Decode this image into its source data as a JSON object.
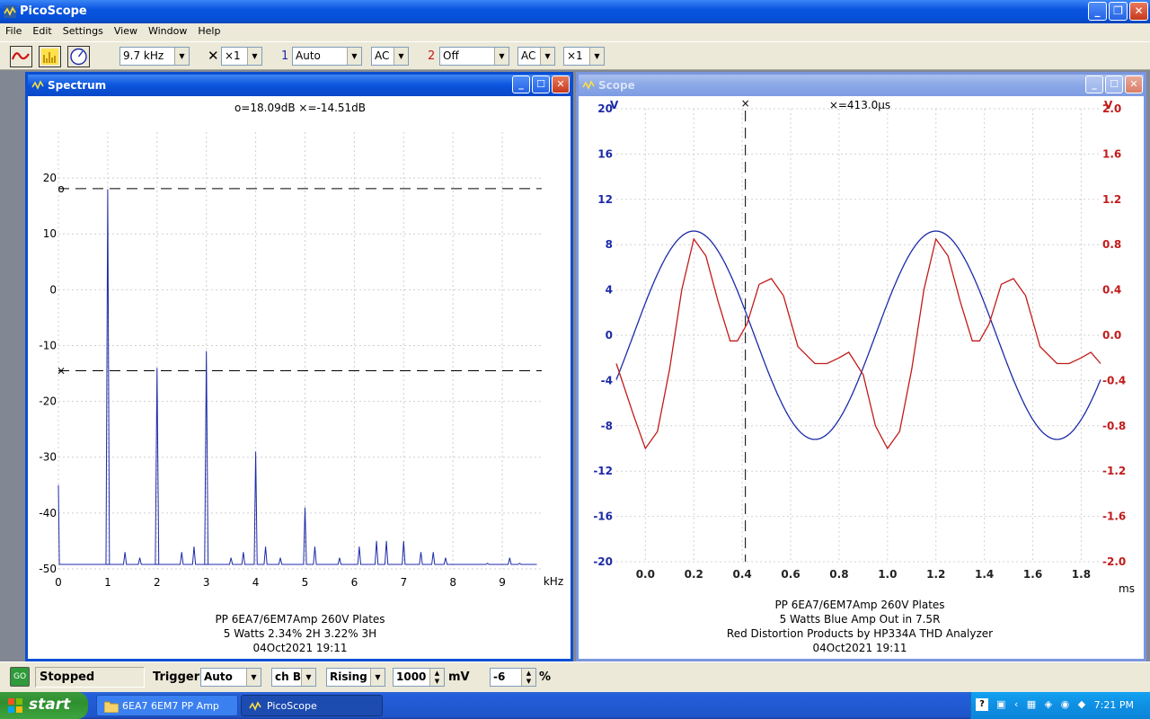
{
  "app": {
    "title": "PicoScope",
    "menu": [
      "File",
      "Edit",
      "Settings",
      "View",
      "Window",
      "Help"
    ]
  },
  "toolbar": {
    "timebase": "9.7 kHz",
    "mult_symbol": "✕",
    "multiplier": "×1",
    "ch1_label": "1",
    "ch1_range": "Auto",
    "ch1_coupling": "AC",
    "ch2_label": "2",
    "ch2_range": "Off",
    "ch2_coupling": "AC",
    "ch2_mult": "×1"
  },
  "spectrum": {
    "title": "Spectrum",
    "readout": "o=18.09dB  ×=-14.51dB",
    "unit": "kHz",
    "caption": [
      "PP 6EA7/6EM7Amp 260V Plates",
      "5 Watts 2.34% 2H 3.22% 3H",
      "04Oct2021  19:11"
    ],
    "marker_o": "o",
    "marker_x": "×"
  },
  "scope": {
    "title": "Scope",
    "readout": "×=413.0µs",
    "left_unit": "V",
    "right_unit": "V",
    "x_unit": "ms",
    "caption": [
      "PP 6EA7/6EM7Amp 260V Plates",
      "5 Watts Blue Amp Out in 7.5R",
      "Red Distortion Products by HP334A THD Analyzer",
      "04Oct2021  19:11"
    ]
  },
  "chart_data": [
    {
      "type": "line",
      "name": "spectrum",
      "xlabel": "kHz",
      "xlim": [
        0,
        9.8
      ],
      "ylim": [
        -50,
        25
      ],
      "x_ticks": [
        "0",
        "1",
        "2",
        "3",
        "4",
        "5",
        "6",
        "7",
        "8",
        "9"
      ],
      "y_ticks": [
        "20",
        "10",
        "0",
        "-10",
        "-20",
        "-30",
        "-40",
        "-50"
      ],
      "cursors_db": [
        18.09,
        -14.51
      ],
      "peaks": [
        {
          "x": 0.0,
          "y": -35
        },
        {
          "x": 1.0,
          "y": 18
        },
        {
          "x": 1.35,
          "y": -47
        },
        {
          "x": 1.65,
          "y": -48
        },
        {
          "x": 2.0,
          "y": -14
        },
        {
          "x": 2.5,
          "y": -47
        },
        {
          "x": 2.75,
          "y": -46
        },
        {
          "x": 3.0,
          "y": -11
        },
        {
          "x": 3.5,
          "y": -48
        },
        {
          "x": 3.75,
          "y": -47
        },
        {
          "x": 4.0,
          "y": -29
        },
        {
          "x": 4.2,
          "y": -46
        },
        {
          "x": 4.5,
          "y": -48
        },
        {
          "x": 5.0,
          "y": -39
        },
        {
          "x": 5.2,
          "y": -46
        },
        {
          "x": 5.7,
          "y": -48
        },
        {
          "x": 6.1,
          "y": -46
        },
        {
          "x": 6.45,
          "y": -45
        },
        {
          "x": 6.65,
          "y": -45
        },
        {
          "x": 7.0,
          "y": -45
        },
        {
          "x": 7.35,
          "y": -47
        },
        {
          "x": 7.6,
          "y": -47
        },
        {
          "x": 7.85,
          "y": -48
        },
        {
          "x": 8.7,
          "y": -49
        },
        {
          "x": 9.15,
          "y": -48
        },
        {
          "x": 9.35,
          "y": -49
        }
      ]
    },
    {
      "type": "line",
      "name": "scope",
      "xlabel": "ms",
      "xlim": [
        -0.12,
        1.88
      ],
      "ylim": [
        -20,
        20
      ],
      "y2lim": [
        -2.0,
        2.0
      ],
      "x_ticks": [
        "0.0",
        "0.2",
        "0.4",
        "0.6",
        "0.8",
        "1.0",
        "1.2",
        "1.4",
        "1.6",
        "1.8"
      ],
      "y_ticks": [
        "20",
        "16",
        "12",
        "8",
        "4",
        "0",
        "-4",
        "-8",
        "-12",
        "-16",
        "-20"
      ],
      "y2_ticks": [
        "2.0",
        "1.6",
        "1.2",
        "0.8",
        "0.4",
        "0.0",
        "-0.4",
        "-0.8",
        "-1.2",
        "-1.6",
        "-2.0"
      ],
      "cursor_ms": 0.413,
      "series": [
        {
          "color": "#1c2aa8",
          "amplitude_v": 9.2,
          "period_ms": 1.0,
          "peak_ms": 0.2
        },
        {
          "color": "#c21b1b",
          "axis": "right",
          "points": [
            [
              -0.12,
              -0.25
            ],
            [
              -0.05,
              -0.7
            ],
            [
              0.0,
              -1.0
            ],
            [
              0.05,
              -0.85
            ],
            [
              0.1,
              -0.3
            ],
            [
              0.15,
              0.4
            ],
            [
              0.2,
              0.85
            ],
            [
              0.25,
              0.7
            ],
            [
              0.3,
              0.3
            ],
            [
              0.35,
              -0.05
            ],
            [
              0.38,
              -0.05
            ],
            [
              0.42,
              0.1
            ],
            [
              0.47,
              0.45
            ],
            [
              0.52,
              0.5
            ],
            [
              0.57,
              0.35
            ],
            [
              0.63,
              -0.1
            ],
            [
              0.7,
              -0.25
            ],
            [
              0.75,
              -0.25
            ],
            [
              0.8,
              -0.2
            ],
            [
              0.84,
              -0.15
            ],
            [
              0.9,
              -0.35
            ],
            [
              0.95,
              -0.8
            ],
            [
              1.0,
              -1.0
            ],
            [
              1.05,
              -0.85
            ],
            [
              1.1,
              -0.3
            ],
            [
              1.15,
              0.4
            ],
            [
              1.2,
              0.85
            ],
            [
              1.25,
              0.7
            ],
            [
              1.3,
              0.3
            ],
            [
              1.35,
              -0.05
            ],
            [
              1.38,
              -0.05
            ],
            [
              1.42,
              0.1
            ],
            [
              1.47,
              0.45
            ],
            [
              1.52,
              0.5
            ],
            [
              1.57,
              0.35
            ],
            [
              1.63,
              -0.1
            ],
            [
              1.7,
              -0.25
            ],
            [
              1.75,
              -0.25
            ],
            [
              1.8,
              -0.2
            ],
            [
              1.84,
              -0.15
            ],
            [
              1.88,
              -0.25
            ]
          ]
        }
      ]
    }
  ],
  "status": {
    "go_label": "GO",
    "state": "Stopped",
    "trigger_label": "Trigger",
    "trigger_mode": "Auto",
    "trigger_channel": "ch B",
    "trigger_edge": "Rising",
    "trigger_level": "1000",
    "level_unit": "mV",
    "pretrigger": "-6",
    "pretrigger_unit": "%"
  },
  "taskbar": {
    "start": "start",
    "items": [
      "6EA7 6EM7 PP Amp",
      "PicoScope"
    ],
    "clock": "7:21 PM"
  }
}
